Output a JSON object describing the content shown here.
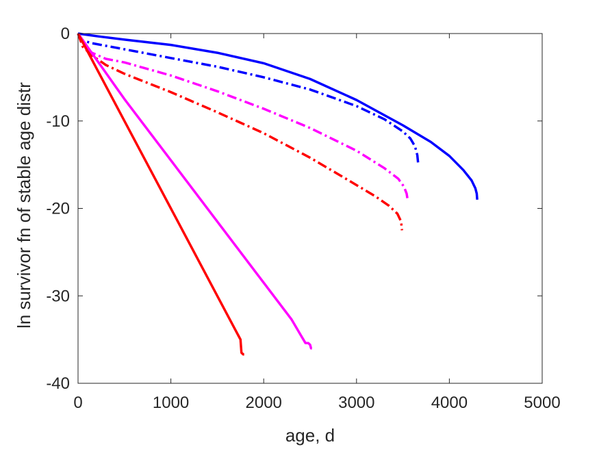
{
  "chart_data": {
    "type": "line",
    "title": "",
    "xlabel": "age, d",
    "ylabel": "ln survivor fn of stable age distr",
    "xlim": [
      0,
      5000
    ],
    "ylim": [
      -40,
      0
    ],
    "xticks": [
      0,
      1000,
      2000,
      3000,
      4000,
      5000
    ],
    "yticks": [
      0,
      -10,
      -20,
      -30,
      -40
    ],
    "xtick_labels": [
      "0",
      "1000",
      "2000",
      "3000",
      "4000",
      "5000"
    ],
    "ytick_labels": [
      "0",
      "-10",
      "-20",
      "-30",
      "-40"
    ],
    "grid": false,
    "legend": "none",
    "series": [
      {
        "color": "#0000ff",
        "style": "solid",
        "x": [
          0,
          200,
          500,
          1000,
          1500,
          2000,
          2500,
          3000,
          3500,
          3800,
          4000,
          4150,
          4240,
          4280,
          4295,
          4300
        ],
        "y": [
          0,
          -0.3,
          -0.7,
          -1.3,
          -2.2,
          -3.4,
          -5.2,
          -7.6,
          -10.5,
          -12.4,
          -14.0,
          -15.6,
          -16.8,
          -17.7,
          -18.3,
          -19.0
        ]
      },
      {
        "color": "#0000ff",
        "style": "dashdot",
        "x": [
          0,
          50,
          150,
          500,
          1000,
          1500,
          2000,
          2500,
          3000,
          3300,
          3500,
          3580,
          3630,
          3655,
          3665
        ],
        "y": [
          0,
          -0.8,
          -1.1,
          -1.8,
          -2.8,
          -3.8,
          -5.0,
          -6.4,
          -8.3,
          -9.8,
          -11.2,
          -12.0,
          -12.9,
          -13.9,
          -15.0
        ]
      },
      {
        "color": "#ff00ff",
        "style": "dashdot",
        "x": [
          0,
          50,
          150,
          300,
          500,
          1000,
          1500,
          2000,
          2500,
          3000,
          3300,
          3450,
          3510,
          3540,
          3550
        ],
        "y": [
          0,
          -1.2,
          -2.2,
          -2.9,
          -3.3,
          -4.8,
          -6.6,
          -8.6,
          -10.8,
          -13.4,
          -15.4,
          -16.6,
          -17.5,
          -18.3,
          -19.0
        ]
      },
      {
        "color": "#ff0000",
        "style": "dashdot",
        "x": [
          0,
          50,
          150,
          300,
          500,
          1000,
          1500,
          2000,
          2500,
          2900,
          3200,
          3350,
          3440,
          3480,
          3490
        ],
        "y": [
          0,
          -1.5,
          -2.5,
          -3.6,
          -4.6,
          -6.7,
          -9.0,
          -11.4,
          -14.2,
          -16.7,
          -18.6,
          -19.7,
          -20.6,
          -21.5,
          -22.5
        ]
      },
      {
        "color": "#ff00ff",
        "style": "solid",
        "x": [
          0,
          100,
          200,
          500,
          1000,
          1500,
          2000,
          2300,
          2400,
          2450,
          2480,
          2500,
          2510,
          2520
        ],
        "y": [
          0,
          -1.5,
          -3.0,
          -7.5,
          -14.5,
          -21.5,
          -28.5,
          -32.7,
          -34.5,
          -35.4,
          -35.4,
          -35.6,
          -36.0,
          -36.0
        ]
      },
      {
        "color": "#ff0000",
        "style": "solid",
        "x": [
          0,
          100,
          200,
          500,
          1000,
          1500,
          1700,
          1730,
          1750,
          1760,
          1780,
          1790
        ],
        "y": [
          0,
          -2.0,
          -4.0,
          -10.0,
          -20.0,
          -30.0,
          -34.0,
          -34.6,
          -35.0,
          -36.5,
          -36.7,
          -36.7
        ]
      }
    ]
  }
}
